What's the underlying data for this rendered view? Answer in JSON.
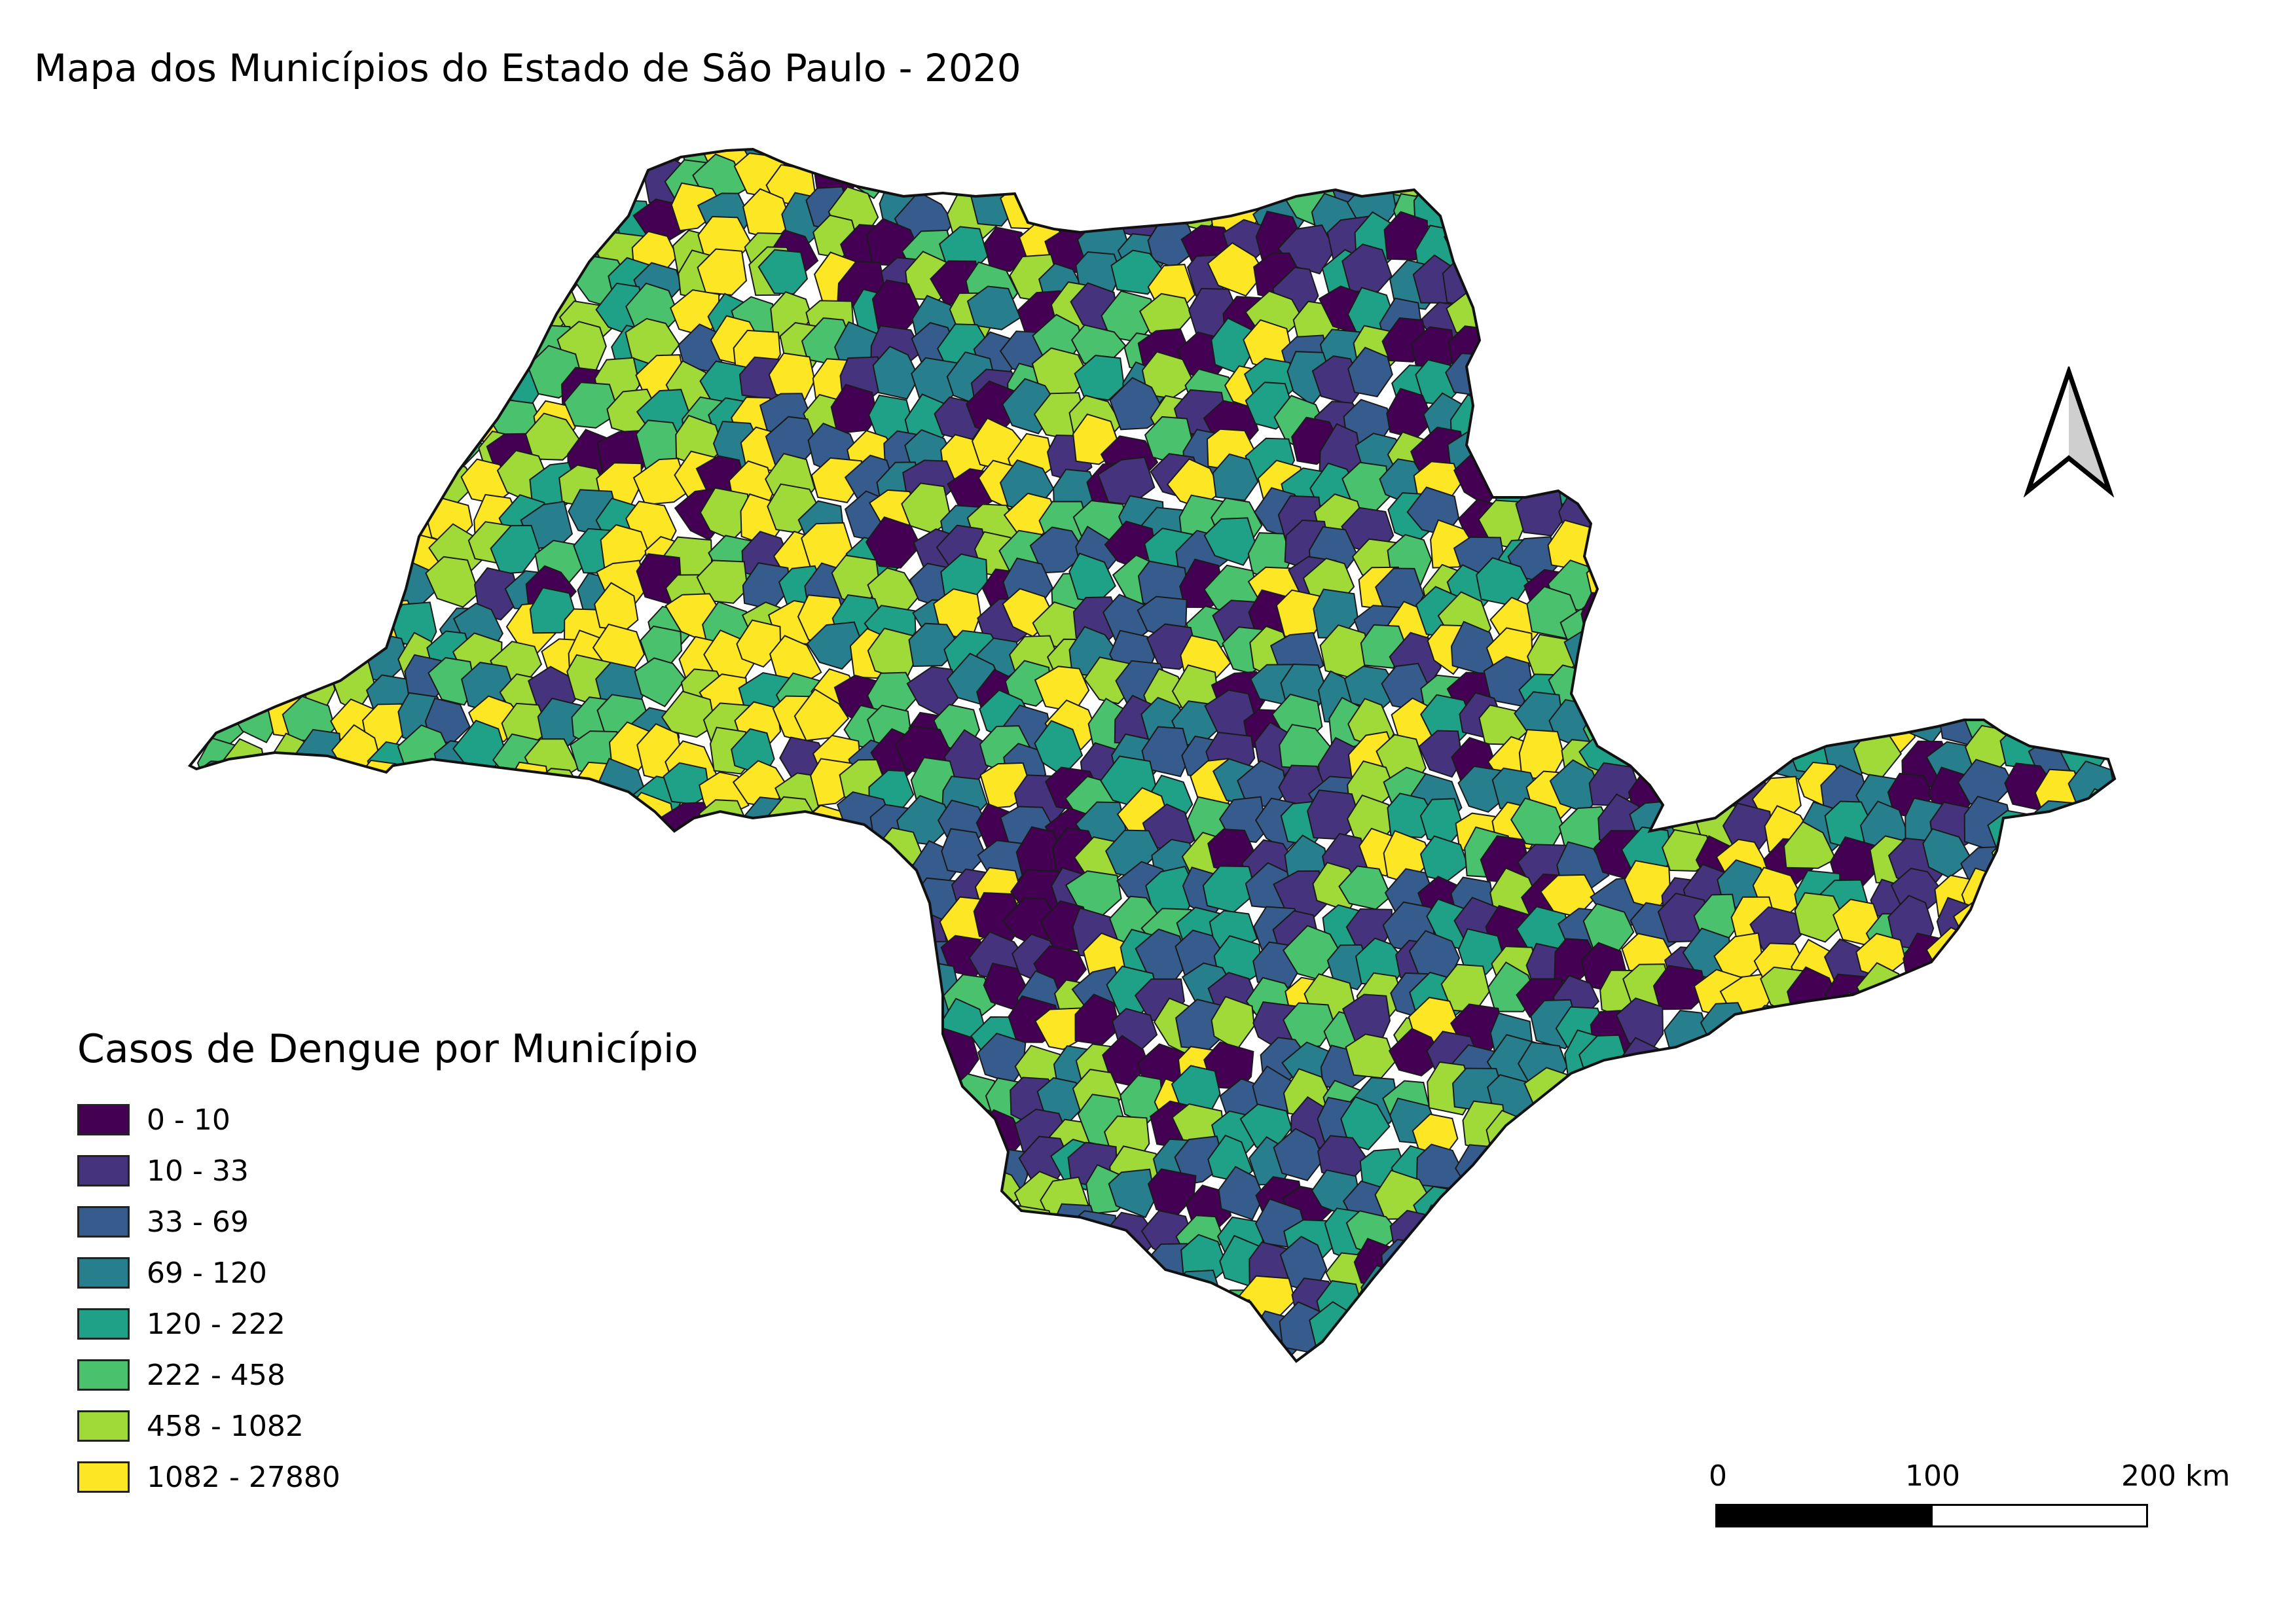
{
  "title": "Mapa dos Municípios do Estado de São Paulo  - 2020",
  "legend": {
    "title": "Casos de Dengue por Município",
    "items": [
      {
        "label": "0 - 10",
        "color": "#440154"
      },
      {
        "label": "10 - 33",
        "color": "#46337e"
      },
      {
        "label": "33 - 69",
        "color": "#365c8d"
      },
      {
        "label": "69 - 120",
        "color": "#277f8e"
      },
      {
        "label": "120 - 222",
        "color": "#1fa187"
      },
      {
        "label": "222 - 458",
        "color": "#4ac16d"
      },
      {
        "label": "458 - 1082",
        "color": "#a0da39"
      },
      {
        "label": "1082 - 27880",
        "color": "#fde725"
      }
    ]
  },
  "scale_bar": {
    "labels": [
      "0",
      "100",
      "200 km"
    ]
  },
  "north_arrow": {
    "icon": "north-arrow-icon"
  },
  "map": {
    "region": "Estado de São Paulo",
    "icon": "choropleth-map"
  }
}
